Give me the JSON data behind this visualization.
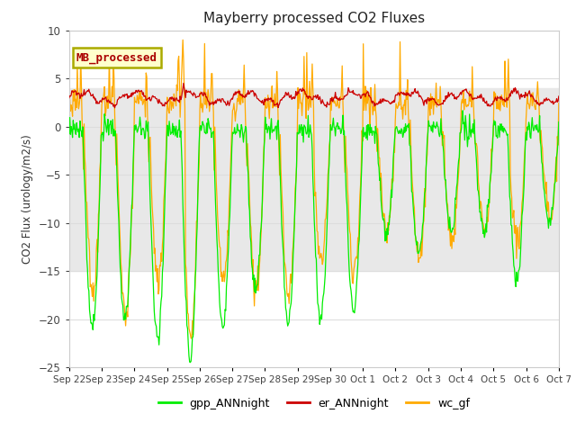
{
  "title": "Mayberry processed CO2 Fluxes",
  "ylabel": "CO2 Flux (urology/m2/s)",
  "ylim": [
    -25,
    10
  ],
  "yticks": [
    -25,
    -20,
    -15,
    -10,
    -5,
    0,
    5,
    10
  ],
  "legend_label": "MB_processed",
  "series": {
    "gpp_ANNnight": {
      "color": "#00ee00",
      "lw": 0.9
    },
    "er_ANNnight": {
      "color": "#cc0000",
      "lw": 0.9
    },
    "wc_gf": {
      "color": "#ffaa00",
      "lw": 0.9
    }
  },
  "legend_items": [
    {
      "label": "gpp_ANNnight",
      "color": "#00ee00"
    },
    {
      "label": "er_ANNnight",
      "color": "#cc0000"
    },
    {
      "label": "wc_gf",
      "color": "#ffaa00"
    }
  ],
  "bg_color": "#ffffff",
  "plot_bg": "#ffffff",
  "box_face": "#ffffcc",
  "box_edge": "#aaaa00",
  "box_text_color": "#aa0000",
  "grid_color": "#dddddd",
  "band1_ymin": -5,
  "band1_ymax": 4,
  "band1_color": "#e8e8e8",
  "band2_ymin": -15,
  "band2_ymax": -5,
  "band2_color": "#e8e8e8",
  "tick_label_color": "#444444",
  "n_points": 720,
  "x_tick_labels": [
    "Sep 22",
    "Sep 23",
    "Sep 24",
    "Sep 25",
    "Sep 26",
    "Sep 27",
    "Sep 28",
    "Sep 29",
    "Sep 30",
    "Oct 1",
    "Oct 2",
    "Oct 3",
    "Oct 4",
    "Oct 5",
    "Oct 6",
    "Oct 7"
  ],
  "x_tick_positions": [
    0,
    1,
    2,
    3,
    4,
    5,
    6,
    7,
    8,
    9,
    10,
    11,
    12,
    13,
    14,
    15
  ]
}
